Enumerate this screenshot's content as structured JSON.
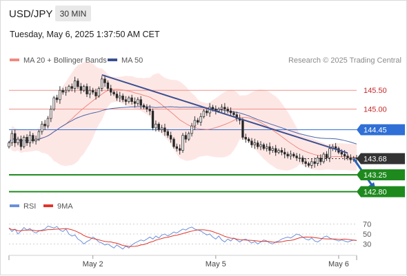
{
  "header": {
    "pair": "USD/JPY",
    "timeframe": "30 MIN",
    "timestamp": "Tuesday, May 6, 2025 1:37:50 AM CET"
  },
  "legend": {
    "ma20": "MA 20 + Bollinger Bands",
    "ma50": "MA 50",
    "credit": "Research © 2025 Trading Central",
    "rsi": "RSI",
    "rsi_ma": "9MA"
  },
  "colors": {
    "ma20": "#f08a80",
    "band_fill": "#fde3e1",
    "ma50": "#4a63a8",
    "trendline": "#3c4f91",
    "resistance": "#f0908a",
    "pivot": "#2f6fd6",
    "support": "#1e8a1e",
    "current": "#333333",
    "arrow": "#2a62b8",
    "candle_up": "#4a4a4a",
    "candle_down": "#222222",
    "rsi": "#6b8fd9",
    "rsi_ma": "#e0352b"
  },
  "chart_data": {
    "type": "candlestick",
    "title": "USD/JPY",
    "timeframe": "30 MIN",
    "y_range": [
      142.7,
      146.2
    ],
    "levels": [
      {
        "label": "145.50",
        "value": 145.5,
        "kind": "resistance"
      },
      {
        "label": "145.00",
        "value": 145.0,
        "kind": "resistance"
      },
      {
        "label": "144.45",
        "value": 144.45,
        "kind": "pivot"
      },
      {
        "label": "143.68",
        "value": 143.68,
        "kind": "current"
      },
      {
        "label": "143.25",
        "value": 143.25,
        "kind": "support"
      },
      {
        "label": "142.80",
        "value": 142.8,
        "kind": "support"
      }
    ],
    "x_ticks": [
      "May 2",
      "May 5",
      "May 6"
    ],
    "x_tick_index": [
      28,
      69,
      110
    ],
    "trendline": {
      "from": [
        31,
        145.91
      ],
      "to": [
        113,
        143.83
      ]
    },
    "projection": {
      "from": [
        115,
        143.68
      ],
      "to": [
        122,
        142.87
      ]
    },
    "closes": [
      144.1,
      144.35,
      144.1,
      144.2,
      144.0,
      144.25,
      144.1,
      144.3,
      144.15,
      144.2,
      144.4,
      144.6,
      144.55,
      144.75,
      145.0,
      145.3,
      145.25,
      145.5,
      145.45,
      145.5,
      145.6,
      145.55,
      145.75,
      145.6,
      145.5,
      145.6,
      145.4,
      145.5,
      145.45,
      145.35,
      145.55,
      145.8,
      145.7,
      145.55,
      145.45,
      145.4,
      145.3,
      145.35,
      145.25,
      145.2,
      145.3,
      145.2,
      145.15,
      145.25,
      145.1,
      145.05,
      145.0,
      144.95,
      144.5,
      144.6,
      144.45,
      144.5,
      144.4,
      144.3,
      144.2,
      144.0,
      143.95,
      143.9,
      144.3,
      144.2,
      144.35,
      144.55,
      144.7,
      144.65,
      144.8,
      144.95,
      144.9,
      145.05,
      145.0,
      144.95,
      145.0,
      145.05,
      145.0,
      144.95,
      144.9,
      144.85,
      144.75,
      144.7,
      144.25,
      144.2,
      144.15,
      144.05,
      144.1,
      144.0,
      144.05,
      143.95,
      144.0,
      143.9,
      143.95,
      143.85,
      143.9,
      143.85,
      143.8,
      143.75,
      143.8,
      143.75,
      143.7,
      143.7,
      143.6,
      143.55,
      143.5,
      143.6,
      143.55,
      143.7,
      143.6,
      143.8,
      143.7,
      143.95,
      144.0,
      143.95,
      143.85,
      143.8,
      143.75,
      143.7,
      143.65,
      143.7,
      143.68
    ],
    "rsi_range": [
      10,
      90
    ],
    "rsi_ticks": [
      70,
      50,
      30
    ],
    "rsi": [
      62,
      55,
      60,
      50,
      56,
      63,
      58,
      61,
      55,
      52,
      56,
      58,
      60,
      66,
      64,
      62,
      65,
      58,
      55,
      60,
      50,
      46,
      48,
      40,
      36,
      30,
      35,
      38,
      44,
      40,
      34,
      32,
      28,
      30,
      26,
      22,
      28,
      24,
      20,
      26,
      22,
      28,
      32,
      35,
      38,
      36,
      40,
      44,
      40,
      46,
      42,
      48,
      50,
      46,
      50,
      54,
      52,
      56,
      60,
      58,
      62,
      64,
      60,
      58,
      56,
      52,
      48,
      50,
      44,
      40,
      46,
      38,
      34,
      40,
      36,
      42,
      38,
      34,
      38,
      40,
      36,
      32,
      35,
      30,
      34,
      38,
      36,
      32,
      30,
      34,
      36,
      40,
      42,
      44,
      42,
      46,
      50,
      48,
      44,
      40,
      38,
      42,
      36,
      34,
      38,
      44,
      46,
      42,
      40,
      38,
      36,
      38,
      36,
      34,
      36,
      38,
      37
    ]
  }
}
